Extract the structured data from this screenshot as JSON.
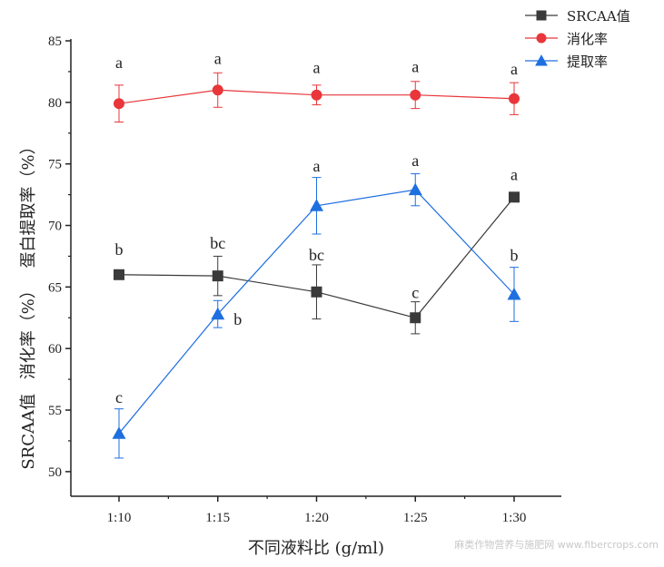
{
  "watermark": "麻类作物营养与施肥网 www.fibercrops.com",
  "chart_data": {
    "type": "line",
    "title": "",
    "xlabel": "不同液料比 (g/ml)",
    "ylabel_parts": [
      "SRCAA值",
      "消化率（%）",
      "蛋白提取率（%）"
    ],
    "categories": [
      "1:10",
      "1:15",
      "1:20",
      "1:25",
      "1:30"
    ],
    "ylim": [
      48,
      85
    ],
    "yticks": [
      50,
      55,
      60,
      65,
      70,
      75,
      80,
      85
    ],
    "grid": false,
    "legend_position": "top-right",
    "series": [
      {
        "name": "SRCAA值",
        "color": "#3a3a3a",
        "marker": "square",
        "values": [
          66.0,
          65.9,
          64.6,
          62.5,
          72.3
        ],
        "errors": [
          0.0,
          1.6,
          2.2,
          1.3,
          0.2
        ],
        "letters": [
          "b",
          "bc",
          "bc",
          "c",
          "a"
        ]
      },
      {
        "name": "消化率",
        "color": "#e8363a",
        "marker": "circle",
        "values": [
          79.9,
          81.0,
          80.6,
          80.6,
          80.3
        ],
        "errors": [
          1.5,
          1.4,
          0.8,
          1.1,
          1.3
        ],
        "letters": [
          "a",
          "a",
          "a",
          "a",
          "a"
        ]
      },
      {
        "name": "提取率",
        "color": "#1e6fe0",
        "marker": "triangle",
        "values": [
          53.1,
          62.8,
          71.6,
          72.9,
          64.4
        ],
        "errors": [
          2.0,
          1.1,
          2.3,
          1.3,
          2.2
        ],
        "letters": [
          "c",
          "b",
          "a",
          "a",
          "b"
        ]
      }
    ]
  }
}
